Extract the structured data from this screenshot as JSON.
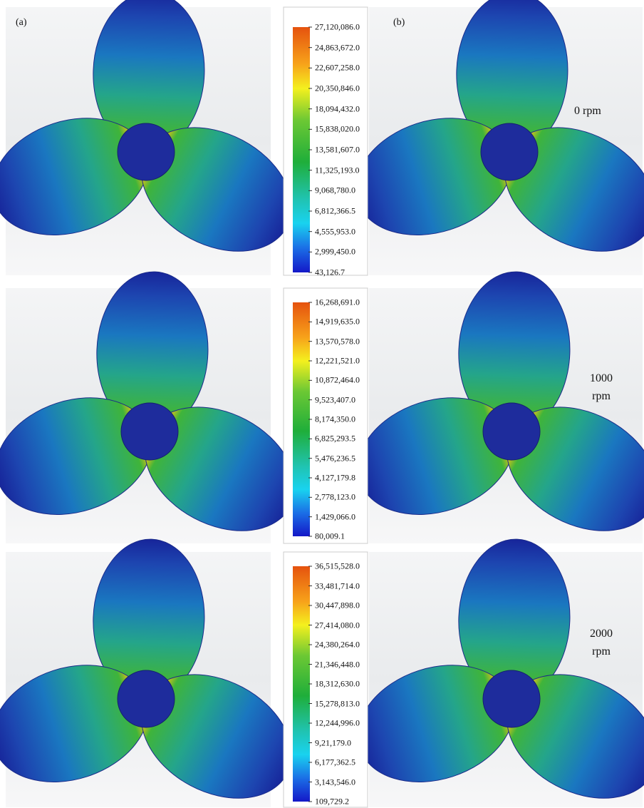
{
  "panel_labels": [
    "(a)",
    "(b)"
  ],
  "rows": [
    {
      "speed": "0 rpm",
      "scale": [
        "27,120,086.0",
        "24,863,672.0",
        "22,607,258.0",
        "20,350,846.0",
        "18,094,432.0",
        "15,838,020.0",
        "13,581,607.0",
        "11,325,193.0",
        "9,068,780.0",
        "6,812,366.5",
        "4,555,953.0",
        "2,999,450.0",
        "43,126.7"
      ]
    },
    {
      "speed": "1000 rpm",
      "scale": [
        "16,268,691.0",
        "14,919,635.0",
        "13,570,578.0",
        "12,221,521.0",
        "10,872,464.0",
        "9,523,407.0",
        "8,174,350.0",
        "6,825,293.5",
        "5,476,236.5",
        "4,127,179.8",
        "2,778,123.0",
        "1,429,066.0",
        "80,009.1"
      ]
    },
    {
      "speed": "2000 rpm",
      "scale": [
        "36,515,528.0",
        "33,481,714.0",
        "30,447,898.0",
        "27,414,080.0",
        "24,380,264.0",
        "21,346,448.0",
        "18,312,630.0",
        "15,278,813.0",
        "12,244,996.0",
        "9,21,179.0",
        "6,177,362.5",
        "3,143,546.0",
        "109,729.2"
      ]
    }
  ]
}
